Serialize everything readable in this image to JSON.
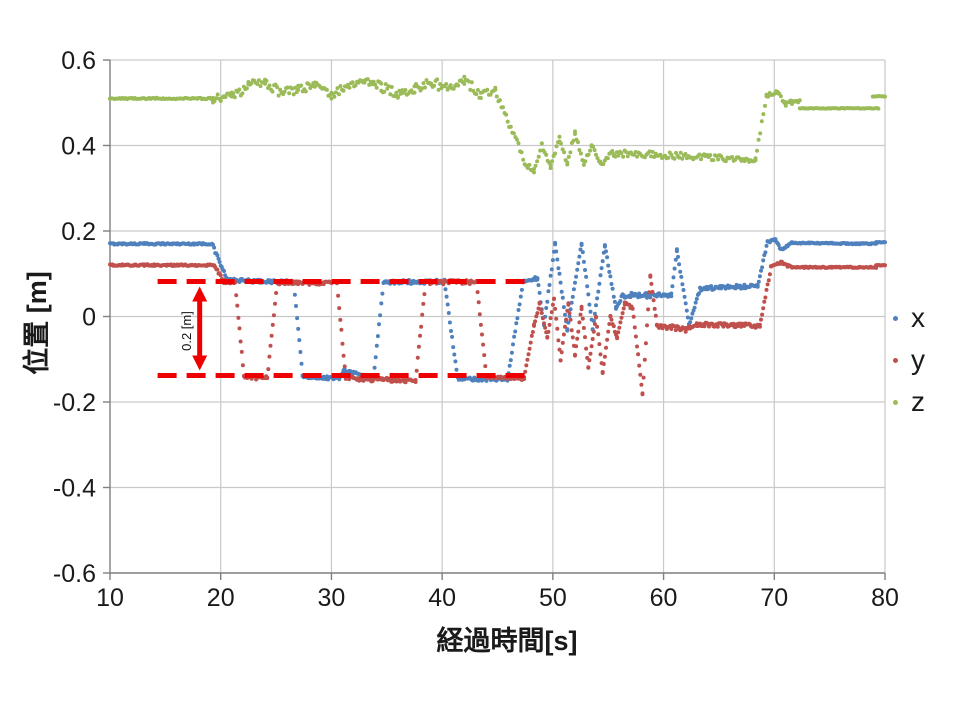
{
  "page": {
    "background": "#ffffff"
  },
  "chart_data": {
    "type": "scatter",
    "title": "",
    "xlabel": "経過時間[s]",
    "ylabel": "位置 [m]",
    "xlim": [
      10,
      80
    ],
    "ylim": [
      -0.6,
      0.6
    ],
    "xticks": [
      10,
      20,
      30,
      40,
      50,
      60,
      70,
      80
    ],
    "ytick_labels": [
      "0.6",
      "0.4",
      "0.2",
      "0",
      "-0.2",
      "-0.4",
      "-0.6"
    ],
    "ytick_values": [
      0.6,
      0.4,
      0.2,
      0,
      -0.2,
      -0.4,
      -0.6
    ],
    "grid": true,
    "legend_position": "right",
    "series": [
      {
        "name": "x",
        "color": "#4F81BD",
        "marker_radius": 2,
        "sample_dt": 0.1,
        "segments": [
          [
            10,
            0.17,
            19.2,
            0.17,
            0.002
          ],
          [
            19.2,
            0.17,
            20.6,
            0.085,
            0.004
          ],
          [
            20.6,
            0.085,
            26.6,
            0.08,
            0.004
          ],
          [
            26.6,
            0.08,
            27.4,
            -0.14,
            0.003
          ],
          [
            27.4,
            -0.14,
            30.7,
            -0.145,
            0.004
          ],
          [
            30.7,
            -0.145,
            31.1,
            -0.125,
            0.003
          ],
          [
            31.1,
            -0.125,
            33.8,
            -0.145,
            0.004
          ],
          [
            33.8,
            -0.145,
            34.7,
            0.08,
            0.003
          ],
          [
            34.7,
            0.08,
            40.2,
            0.082,
            0.005
          ],
          [
            40.2,
            0.082,
            41.4,
            -0.145,
            0.003
          ],
          [
            41.4,
            -0.145,
            45.9,
            -0.148,
            0.004
          ],
          [
            45.9,
            -0.148,
            47.3,
            0.08,
            0.003
          ],
          [
            47.3,
            0.08,
            48.6,
            0.09,
            0.004
          ],
          [
            48.6,
            0.09,
            49.2,
            -0.02,
            0.003
          ],
          [
            49.2,
            -0.02,
            50.2,
            0.17,
            0.003
          ],
          [
            50.2,
            0.17,
            51.3,
            -0.03,
            0.003
          ],
          [
            51.3,
            -0.03,
            52.6,
            0.17,
            0.003
          ],
          [
            52.6,
            0.17,
            53.6,
            -0.03,
            0.003
          ],
          [
            53.6,
            -0.03,
            54.7,
            0.165,
            0.003
          ],
          [
            54.7,
            0.165,
            55.7,
            0.02,
            0.003
          ],
          [
            55.7,
            0.02,
            56.3,
            0.05,
            0.004
          ],
          [
            56.3,
            0.05,
            60.7,
            0.048,
            0.006
          ],
          [
            60.7,
            0.048,
            61.2,
            0.155,
            0.003
          ],
          [
            61.2,
            0.155,
            62.3,
            -0.02,
            0.003
          ],
          [
            62.3,
            -0.02,
            63.3,
            0.065,
            0.003
          ],
          [
            63.3,
            0.065,
            68.5,
            0.072,
            0.005
          ],
          [
            68.5,
            0.072,
            69.4,
            0.175,
            0.003
          ],
          [
            69.4,
            0.175,
            70.1,
            0.18,
            0.003
          ],
          [
            70.1,
            0.18,
            70.6,
            0.155,
            0.003
          ],
          [
            70.6,
            0.155,
            71.6,
            0.172,
            0.003
          ],
          [
            71.6,
            0.172,
            79.2,
            0.17,
            0.0015
          ],
          [
            79.2,
            0.174,
            80,
            0.174,
            0.001
          ]
        ]
      },
      {
        "name": "y",
        "color": "#C0504D",
        "marker_radius": 2,
        "sample_dt": 0.1,
        "segments": [
          [
            10,
            0.12,
            19.4,
            0.12,
            0.002
          ],
          [
            19.4,
            0.12,
            20.3,
            0.082,
            0.003
          ],
          [
            20.3,
            0.082,
            21.3,
            0.08,
            0.004
          ],
          [
            21.3,
            0.08,
            22.1,
            -0.14,
            0.003
          ],
          [
            22.1,
            -0.14,
            24.2,
            -0.145,
            0.005
          ],
          [
            24.2,
            -0.145,
            25.1,
            0.08,
            0.003
          ],
          [
            25.1,
            0.08,
            30.5,
            0.078,
            0.005
          ],
          [
            30.5,
            0.078,
            31.3,
            -0.145,
            0.003
          ],
          [
            31.3,
            -0.145,
            37.6,
            -0.15,
            0.005
          ],
          [
            37.6,
            -0.15,
            38.5,
            0.08,
            0.003
          ],
          [
            38.5,
            0.08,
            43.1,
            0.08,
            0.005
          ],
          [
            43.1,
            0.08,
            44.0,
            -0.14,
            0.003
          ],
          [
            44.0,
            -0.14,
            47.4,
            -0.145,
            0.004
          ],
          [
            47.4,
            -0.145,
            48.3,
            -0.02,
            0.003
          ],
          [
            48.3,
            -0.02,
            48.8,
            0.03,
            0.003
          ],
          [
            48.8,
            0.03,
            49.5,
            -0.05,
            0.003
          ],
          [
            49.5,
            -0.05,
            50.1,
            0.04,
            0.003
          ],
          [
            50.1,
            0.04,
            50.7,
            -0.1,
            0.003
          ],
          [
            50.7,
            -0.1,
            51.4,
            0.03,
            0.003
          ],
          [
            51.4,
            0.03,
            52.0,
            -0.09,
            0.003
          ],
          [
            52.0,
            -0.09,
            52.6,
            0.02,
            0.003
          ],
          [
            52.6,
            0.02,
            53.2,
            -0.12,
            0.003
          ],
          [
            53.2,
            -0.12,
            53.9,
            0.0,
            0.003
          ],
          [
            53.9,
            0.0,
            54.5,
            -0.13,
            0.003
          ],
          [
            54.5,
            -0.13,
            55.2,
            0.0,
            0.003
          ],
          [
            55.2,
            0.0,
            55.8,
            -0.05,
            0.003
          ],
          [
            55.8,
            -0.05,
            56.5,
            0.03,
            0.004
          ],
          [
            56.5,
            0.03,
            57.2,
            0.02,
            0.004
          ],
          [
            57.2,
            0.02,
            58.1,
            -0.18,
            0.003
          ],
          [
            58.1,
            -0.18,
            58.8,
            0.095,
            0.003
          ],
          [
            58.8,
            0.095,
            59.4,
            -0.02,
            0.003
          ],
          [
            59.4,
            -0.02,
            62.0,
            -0.03,
            0.006
          ],
          [
            62.0,
            -0.03,
            63.0,
            -0.018,
            0.004
          ],
          [
            63.0,
            -0.018,
            68.7,
            -0.022,
            0.005
          ],
          [
            68.7,
            -0.022,
            69.7,
            0.115,
            0.003
          ],
          [
            69.7,
            0.115,
            70.6,
            0.126,
            0.003
          ],
          [
            70.6,
            0.126,
            71.6,
            0.115,
            0.003
          ],
          [
            71.6,
            0.115,
            79.2,
            0.115,
            0.0015
          ],
          [
            79.2,
            0.12,
            80,
            0.12,
            0.001
          ]
        ]
      },
      {
        "name": "z",
        "color": "#9BBB59",
        "marker_radius": 2,
        "sample_dt": 0.14,
        "segments": [
          [
            10,
            0.51,
            19.3,
            0.51,
            0.0015
          ],
          [
            19.3,
            0.51,
            21.0,
            0.515,
            0.01
          ],
          [
            21.0,
            0.515,
            22.5,
            0.54,
            0.012
          ],
          [
            22.5,
            0.54,
            24.0,
            0.55,
            0.01
          ],
          [
            24.0,
            0.55,
            25.5,
            0.522,
            0.012
          ],
          [
            25.5,
            0.522,
            27.0,
            0.532,
            0.01
          ],
          [
            27.0,
            0.532,
            28.5,
            0.54,
            0.01
          ],
          [
            28.5,
            0.54,
            30.0,
            0.515,
            0.012
          ],
          [
            30.0,
            0.515,
            31.5,
            0.542,
            0.01
          ],
          [
            31.5,
            0.542,
            33.0,
            0.552,
            0.008
          ],
          [
            33.0,
            0.552,
            34.5,
            0.538,
            0.01
          ],
          [
            34.5,
            0.538,
            36.0,
            0.52,
            0.012
          ],
          [
            36.0,
            0.52,
            37.5,
            0.533,
            0.01
          ],
          [
            37.5,
            0.533,
            39.0,
            0.548,
            0.01
          ],
          [
            39.0,
            0.548,
            40.5,
            0.533,
            0.012
          ],
          [
            40.5,
            0.533,
            42.0,
            0.552,
            0.008
          ],
          [
            42.0,
            0.552,
            43.5,
            0.52,
            0.012
          ],
          [
            43.5,
            0.52,
            44.8,
            0.528,
            0.01
          ],
          [
            44.8,
            0.528,
            47.6,
            0.355,
            0.008
          ],
          [
            47.6,
            0.355,
            48.3,
            0.34,
            0.006
          ],
          [
            48.3,
            0.34,
            49.0,
            0.4,
            0.006
          ],
          [
            49.0,
            0.4,
            49.8,
            0.35,
            0.006
          ],
          [
            49.8,
            0.35,
            50.6,
            0.415,
            0.006
          ],
          [
            50.6,
            0.415,
            51.3,
            0.36,
            0.006
          ],
          [
            51.3,
            0.36,
            52.0,
            0.428,
            0.006
          ],
          [
            52.0,
            0.428,
            52.8,
            0.36,
            0.006
          ],
          [
            52.8,
            0.36,
            53.5,
            0.398,
            0.006
          ],
          [
            53.5,
            0.398,
            54.3,
            0.358,
            0.006
          ],
          [
            54.3,
            0.358,
            55.5,
            0.382,
            0.008
          ],
          [
            55.5,
            0.382,
            68.3,
            0.368,
            0.008
          ],
          [
            68.3,
            0.368,
            69.3,
            0.518,
            0.004
          ],
          [
            69.3,
            0.518,
            70.3,
            0.525,
            0.005
          ],
          [
            70.3,
            0.525,
            70.9,
            0.498,
            0.005
          ],
          [
            70.9,
            0.498,
            72.3,
            0.505,
            0.006
          ],
          [
            72.3,
            0.487,
            79.4,
            0.487,
            0.0008
          ],
          [
            78.9,
            0.515,
            80.0,
            0.515,
            0.0008
          ]
        ]
      }
    ],
    "annotation": {
      "label": "0.2 [m]",
      "color": "#EE0000",
      "line_values": [
        0.082,
        -0.138
      ],
      "line_t_range": [
        14.3,
        47.8
      ],
      "arrow_t": 18.1
    }
  },
  "legend": {
    "items": [
      {
        "label": "x",
        "color": "#4F81BD"
      },
      {
        "label": "y",
        "color": "#C0504D"
      },
      {
        "label": "z",
        "color": "#9BBB59"
      }
    ]
  },
  "axes": {
    "grid_color": "#C9C9C9",
    "axis_color": "#7F7F7F",
    "tick_color": "#7F7F7F",
    "label_color": "#1a1a1a"
  }
}
